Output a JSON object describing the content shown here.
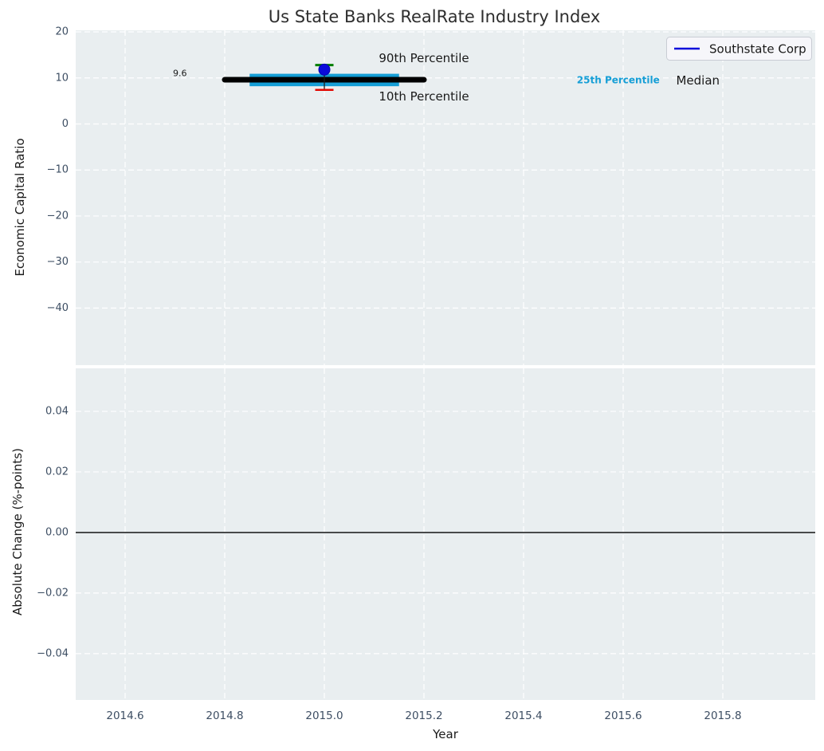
{
  "figure": {
    "title": "Us State Banks RealRate Industry Index"
  },
  "legend": {
    "label": "Southstate Corp"
  },
  "colors": {
    "figure_bg": "#ffffff",
    "axes_bg": "#e9eef0",
    "grid": "#ffffff",
    "tick_label": "#3d4e63",
    "text_dark": "#1a1a1a",
    "title": "#2e2e2e",
    "band": "#159ed6",
    "blue": "#0b0bdb",
    "green": "#007d00",
    "red": "#e10600",
    "black": "#000000",
    "legend_bg": "#f6f6fa",
    "legend_border": "#c9ccd4"
  },
  "chart_data": [
    {
      "panel": "economic-capital-ratio",
      "type": "scatter",
      "ylabel": "Economic Capital Ratio",
      "ylim": [
        -52.4,
        20.35
      ],
      "yticks": {
        "values": [
          20,
          10,
          0,
          -10,
          -20,
          -30,
          -40
        ],
        "labels": [
          "20",
          "10",
          "0",
          "−10",
          "−20",
          "−30",
          "−40"
        ]
      },
      "xlim": [
        2014.5008,
        2015.9856
      ],
      "xticks": {
        "values": [
          2014.6,
          2014.8,
          2015.0,
          2015.2,
          2015.4,
          2015.6,
          2015.8
        ],
        "labels": []
      },
      "grid": true,
      "legend_position": "upper right",
      "series": {
        "name": "Southstate Corp",
        "x": [
          2015.0
        ],
        "y": [
          11.8
        ]
      },
      "industry_stats": {
        "year": 2015.0,
        "median": 9.6,
        "median_label": "9.6",
        "median_line": {
          "x0": 2014.8,
          "x1": 2015.2
        },
        "p25_75_band": {
          "low": 8.2,
          "high": 10.9,
          "x0": 2014.85,
          "x1": 2015.15
        },
        "p90": 12.8,
        "p10": 7.4,
        "cap_halfwidth_years": 0.0184
      },
      "annotations": [
        {
          "id": "p90-label",
          "text": "90th Percentile",
          "x": 2015.2,
          "y": 14.3,
          "size": 15,
          "weight": "normal",
          "color": "#1a1a1a"
        },
        {
          "id": "p10-label",
          "text": "10th Percentile",
          "x": 2015.2,
          "y": 6.0,
          "size": 15,
          "weight": "normal",
          "color": "#1a1a1a"
        },
        {
          "id": "median-value",
          "text": "9.6",
          "x": 2014.71,
          "y": 11.0,
          "size": 11,
          "weight": "normal",
          "color": "#1a1a1a"
        },
        {
          "id": "p25-label",
          "text": "25th Percentile",
          "x": 2015.59,
          "y": 9.55,
          "size": 12,
          "weight": "bold",
          "color": "#159ed6"
        },
        {
          "id": "median-label",
          "text": "Median",
          "x": 2015.75,
          "y": 9.45,
          "size": 15,
          "weight": "normal",
          "color": "#1a1a1a"
        }
      ]
    },
    {
      "panel": "absolute-change",
      "type": "line",
      "ylabel": "Absolute Change (%-points)",
      "xlabel": "Year",
      "ylim": [
        -0.0553,
        0.0542
      ],
      "yticks": {
        "values": [
          0.04,
          0.02,
          0,
          -0.02,
          -0.04
        ],
        "labels": [
          "0.04",
          "0.02",
          "0.00",
          "−0.02",
          "−0.04"
        ]
      },
      "xlim": [
        2014.5008,
        2015.9856
      ],
      "xticks": {
        "values": [
          2014.6,
          2014.8,
          2015.0,
          2015.2,
          2015.4,
          2015.6,
          2015.8
        ],
        "labels": [
          "2014.6",
          "2014.8",
          "2015.0",
          "2015.2",
          "2015.4",
          "2015.6",
          "2015.8"
        ]
      },
      "grid": true,
      "zero_line": 0.0,
      "series": {
        "name": "Southstate Corp",
        "x": [],
        "y": []
      }
    }
  ]
}
